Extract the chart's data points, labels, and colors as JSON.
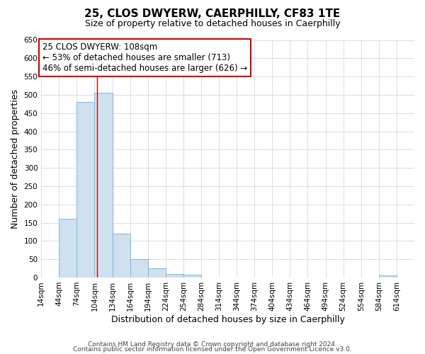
{
  "title": "25, CLOS DWYERW, CAERPHILLY, CF83 1TE",
  "subtitle": "Size of property relative to detached houses in Caerphilly",
  "xlabel": "Distribution of detached houses by size in Caerphilly",
  "ylabel": "Number of detached properties",
  "bin_left_edges": [
    14,
    44,
    74,
    104,
    134,
    164,
    194,
    224,
    254,
    284,
    314,
    344,
    374,
    404,
    434,
    464,
    494,
    524,
    554,
    584
  ],
  "bar_heights": [
    0,
    160,
    480,
    505,
    120,
    50,
    25,
    10,
    8,
    0,
    0,
    0,
    0,
    0,
    0,
    0,
    0,
    0,
    0,
    5
  ],
  "bar_color": "#cfe0f0",
  "bar_edge_color": "#7db8d8",
  "ylim": [
    0,
    650
  ],
  "yticks": [
    0,
    50,
    100,
    150,
    200,
    250,
    300,
    350,
    400,
    450,
    500,
    550,
    600,
    650
  ],
  "xlim_left": 14,
  "xlim_right": 644,
  "xtick_positions": [
    14,
    44,
    74,
    104,
    134,
    164,
    194,
    224,
    254,
    284,
    314,
    344,
    374,
    404,
    434,
    464,
    494,
    524,
    554,
    584,
    614
  ],
  "xtick_labels": [
    "14sqm",
    "44sqm",
    "74sqm",
    "104sqm",
    "134sqm",
    "164sqm",
    "194sqm",
    "224sqm",
    "254sqm",
    "284sqm",
    "314sqm",
    "344sqm",
    "374sqm",
    "404sqm",
    "434sqm",
    "464sqm",
    "494sqm",
    "524sqm",
    "554sqm",
    "584sqm",
    "614sqm"
  ],
  "bin_width": 30,
  "property_size": 108,
  "vline_color": "#cc0000",
  "annotation_box_edge_color": "#cc0000",
  "annotation_text_line1": "25 CLOS DWYERW: 108sqm",
  "annotation_text_line2": "← 53% of detached houses are smaller (713)",
  "annotation_text_line3": "46% of semi-detached houses are larger (626) →",
  "footer_line1": "Contains HM Land Registry data © Crown copyright and database right 2024.",
  "footer_line2": "Contains public sector information licensed under the Open Government Licence v3.0.",
  "background_color": "#ffffff",
  "grid_color": "#cdd8e8",
  "title_fontsize": 11,
  "subtitle_fontsize": 9,
  "xlabel_fontsize": 9,
  "ylabel_fontsize": 9,
  "tick_fontsize": 7.5,
  "annotation_fontsize": 8.5,
  "footer_fontsize": 6.5
}
